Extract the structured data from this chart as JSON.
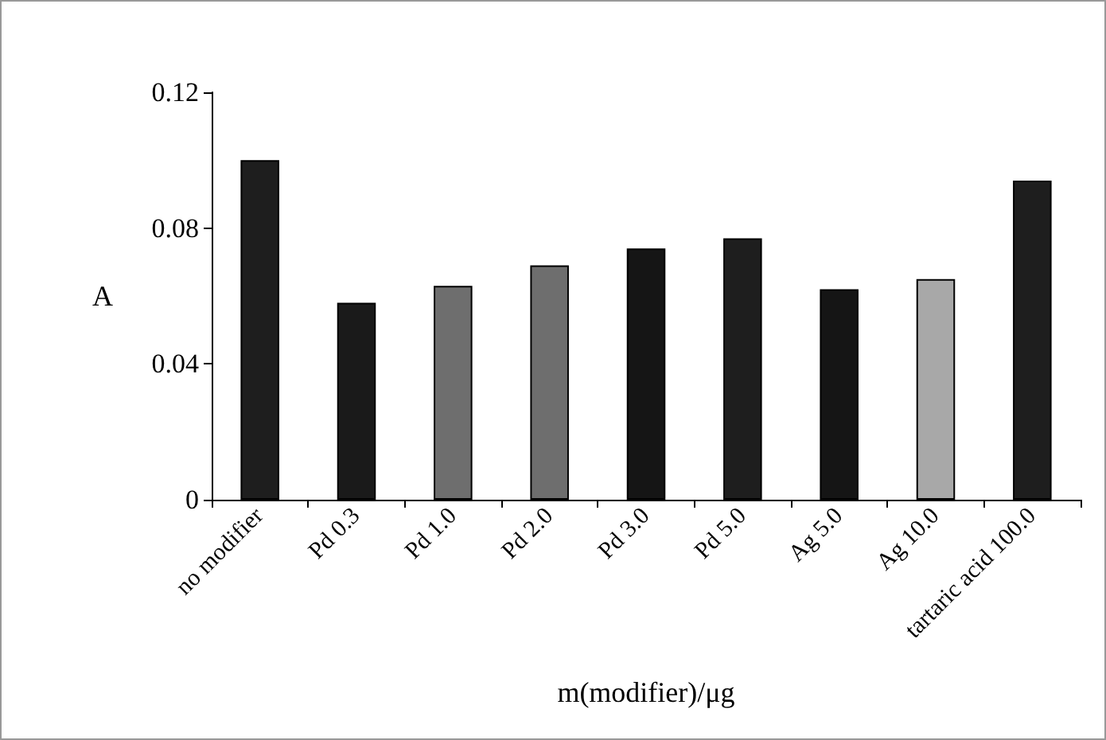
{
  "chart_data": {
    "type": "bar",
    "xlabel": "m(modifier)/μg",
    "ylabel": "A",
    "categories": [
      "no modifier",
      "Pd 0.3",
      "Pd 1.0",
      "Pd 2.0",
      "Pd 3.0",
      "Pd 5.0",
      "Ag 5.0",
      "Ag 10.0",
      "tartaric acid 100.0"
    ],
    "values": [
      0.1,
      0.058,
      0.063,
      0.069,
      0.074,
      0.077,
      0.062,
      0.065,
      0.094
    ],
    "colors": [
      "#1e1e1e",
      "#1a1a1a",
      "#6e6e6e",
      "#6e6e6e",
      "#151515",
      "#1e1e1e",
      "#151515",
      "#a8a8a8",
      "#1e1e1e"
    ],
    "ylim": [
      0,
      0.12
    ],
    "yticks": [
      0,
      0.04,
      0.08,
      0.12
    ],
    "grid": false
  }
}
